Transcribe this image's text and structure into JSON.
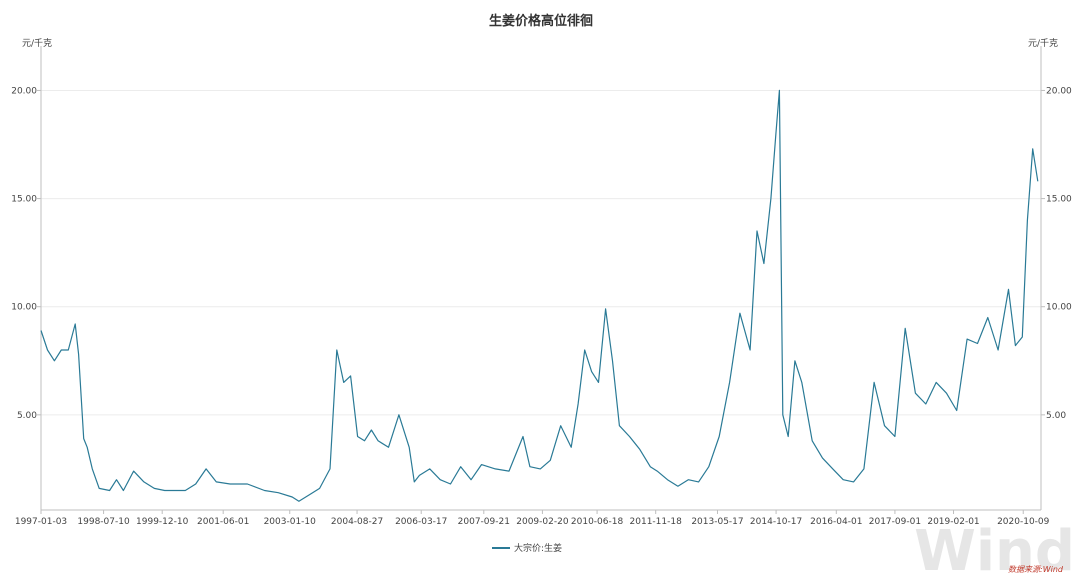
{
  "chart_data": {
    "type": "line",
    "title": "生姜价格高位徘徊",
    "unit_left": "元/千克",
    "unit_right": "元/千克",
    "yticks": [
      "5.00",
      "10.00",
      "15.00",
      "20.00"
    ],
    "ytick_values": [
      5,
      10,
      15,
      20
    ],
    "ylim": [
      0.6,
      21.5
    ],
    "xticks": [
      "1997-01-03",
      "1998-07-10",
      "1999-12-10",
      "2001-06-01",
      "2003-01-10",
      "2004-08-27",
      "2006-03-17",
      "2007-09-21",
      "2009-02-20",
      "2010-06-18",
      "2011-11-18",
      "2013-05-17",
      "2014-10-17",
      "2016-04-01",
      "2017-09-01",
      "2019-02-01",
      "2020-10-09"
    ],
    "xlim": [
      "1997-01-03",
      "2021-03-15"
    ],
    "legend_position": "bottom-center",
    "grid": "horizontal",
    "series": [
      {
        "name": "大宗价:生姜",
        "color": "#2a7a96",
        "x": [
          "1997-01-03",
          "1997-03-01",
          "1997-05-01",
          "1997-07-01",
          "1997-09-01",
          "1997-11-01",
          "1997-12-01",
          "1998-01-15",
          "1998-02-15",
          "1998-04-01",
          "1998-06-01",
          "1998-09-01",
          "1998-11-01",
          "1999-01-01",
          "1999-04-01",
          "1999-07-01",
          "1999-10-01",
          "2000-01-01",
          "2000-04-01",
          "2000-07-01",
          "2000-10-01",
          "2001-01-01",
          "2001-04-01",
          "2001-08-01",
          "2002-01-01",
          "2002-06-01",
          "2002-10-01",
          "2003-02-01",
          "2003-04-01",
          "2003-07-01",
          "2003-10-01",
          "2004-01-01",
          "2004-03-01",
          "2004-05-01",
          "2004-07-01",
          "2004-09-01",
          "2004-11-01",
          "2005-01-01",
          "2005-03-01",
          "2005-06-01",
          "2005-09-01",
          "2005-12-01",
          "2006-01-15",
          "2006-03-01",
          "2006-06-01",
          "2006-09-01",
          "2006-12-01",
          "2007-03-01",
          "2007-06-01",
          "2007-09-01",
          "2008-01-01",
          "2008-05-01",
          "2008-09-01",
          "2008-11-01",
          "2009-02-01",
          "2009-05-01",
          "2009-08-01",
          "2009-11-01",
          "2010-01-01",
          "2010-03-01",
          "2010-05-01",
          "2010-07-01",
          "2010-09-01",
          "2010-11-01",
          "2011-01-01",
          "2011-04-01",
          "2011-07-01",
          "2011-10-01",
          "2011-12-01",
          "2012-03-01",
          "2012-06-01",
          "2012-09-01",
          "2012-12-01",
          "2013-03-01",
          "2013-06-01",
          "2013-09-01",
          "2013-12-01",
          "2014-03-01",
          "2014-05-01",
          "2014-07-01",
          "2014-09-01",
          "2014-10-15",
          "2014-11-15",
          "2014-12-15",
          "2015-02-01",
          "2015-04-01",
          "2015-06-01",
          "2015-09-01",
          "2015-12-01",
          "2016-03-01",
          "2016-06-01",
          "2016-09-01",
          "2016-12-01",
          "2017-03-01",
          "2017-06-01",
          "2017-09-01",
          "2017-12-01",
          "2018-03-01",
          "2018-06-01",
          "2018-09-01",
          "2018-12-01",
          "2019-03-01",
          "2019-06-01",
          "2019-09-01",
          "2019-12-01",
          "2020-03-01",
          "2020-06-01",
          "2020-08-01",
          "2020-10-01",
          "2020-11-15",
          "2021-01-01",
          "2021-02-15"
        ],
        "values": [
          8.9,
          8.0,
          7.5,
          8.0,
          8.0,
          9.2,
          7.8,
          3.9,
          3.5,
          2.5,
          1.6,
          1.5,
          2.0,
          1.5,
          2.4,
          1.9,
          1.6,
          1.5,
          1.5,
          1.5,
          1.8,
          2.5,
          1.9,
          1.8,
          1.8,
          1.5,
          1.4,
          1.2,
          1.0,
          1.3,
          1.6,
          2.5,
          8.0,
          6.5,
          6.8,
          4.0,
          3.8,
          4.3,
          3.8,
          3.5,
          5.0,
          3.5,
          1.9,
          2.2,
          2.5,
          2.0,
          1.8,
          2.6,
          2.0,
          2.7,
          2.5,
          2.4,
          4.0,
          2.6,
          2.5,
          2.9,
          4.5,
          3.5,
          5.5,
          8.0,
          7.0,
          6.5,
          9.9,
          7.5,
          4.5,
          4.0,
          3.4,
          2.6,
          2.4,
          2.0,
          1.7,
          2.0,
          1.9,
          2.6,
          4.0,
          6.5,
          9.7,
          8.0,
          13.5,
          12.0,
          15.0,
          18.0,
          20.0,
          5.0,
          4.0,
          7.5,
          6.5,
          3.8,
          3.0,
          2.5,
          2.0,
          1.9,
          2.5,
          6.5,
          4.5,
          4.0,
          9.0,
          6.0,
          5.5,
          6.5,
          6.0,
          5.2,
          8.5,
          8.3,
          9.5,
          8.0,
          10.8,
          8.2,
          8.6,
          14.0,
          17.3,
          15.8
        ]
      }
    ]
  },
  "legend_label": "大宗价:生姜",
  "source_note": "数据来源:Wind",
  "watermark": "Wind"
}
